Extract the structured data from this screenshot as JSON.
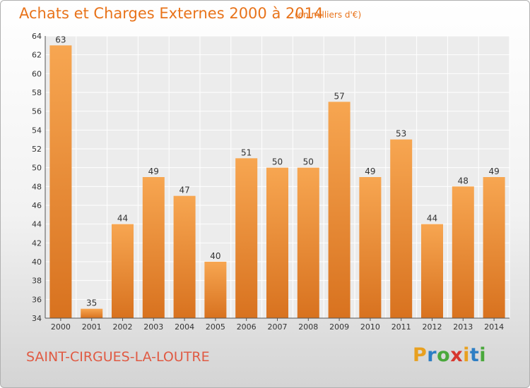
{
  "title": "Achats et Charges Externes 2000 à 2014",
  "unit_note": "(en milliers d'€)",
  "commune": "SAINT-CIRGUES-LA-LOUTRE",
  "brand": {
    "logo_text": "Proxiti"
  },
  "colors": {
    "title": "#e8731a",
    "commune": "#e05a43",
    "bar_light": "#f7a651",
    "bar_dark": "#d8721f"
  },
  "chart_data": {
    "type": "bar",
    "title": "Achats et Charges Externes 2000 à 2014",
    "xlabel": "",
    "ylabel": "",
    "categories": [
      "2000",
      "2001",
      "2002",
      "2003",
      "2004",
      "2005",
      "2006",
      "2007",
      "2008",
      "2009",
      "2010",
      "2011",
      "2012",
      "2013",
      "2014"
    ],
    "values": [
      63,
      35,
      44,
      49,
      47,
      40,
      51,
      50,
      50,
      57,
      49,
      53,
      44,
      48,
      49
    ],
    "ylim": [
      34,
      64
    ],
    "yticks": [
      34,
      36,
      38,
      40,
      42,
      44,
      46,
      48,
      50,
      52,
      54,
      56,
      58,
      60,
      62,
      64
    ],
    "grid": true,
    "legend": "none"
  }
}
